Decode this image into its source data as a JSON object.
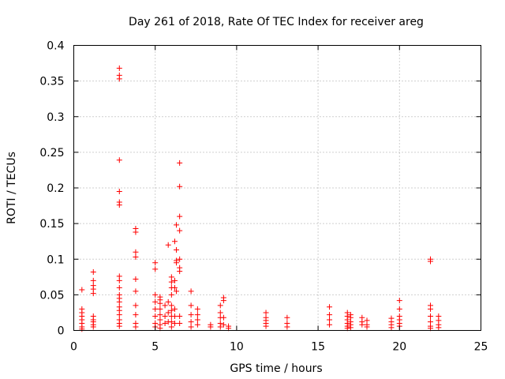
{
  "chart_data": {
    "type": "scatter",
    "title": "Day 261 of 2018, Rate Of TEC Index for receiver areg",
    "xlabel": "GPS time / hours",
    "ylabel": "ROTI / TECUs",
    "xlim": [
      0,
      25
    ],
    "ylim": [
      0,
      0.4
    ],
    "xticks": [
      0,
      5,
      10,
      15,
      20,
      25
    ],
    "xtick_labels": [
      "0",
      "5",
      "10",
      "15",
      "20",
      "25"
    ],
    "yticks": [
      0,
      0.05,
      0.1,
      0.15,
      0.2,
      0.25,
      0.3,
      0.35,
      0.4
    ],
    "ytick_labels": [
      "0",
      "0.05",
      "0.1",
      "0.15",
      "0.2",
      "0.25",
      "0.3",
      "0.35",
      "0.4"
    ],
    "grid": true,
    "marker": "+",
    "color": "#ff0000",
    "series": [
      {
        "name": "ROTI",
        "points": [
          [
            0.5,
            0.057
          ],
          [
            0.5,
            0.03
          ],
          [
            0.5,
            0.025
          ],
          [
            0.5,
            0.02
          ],
          [
            0.5,
            0.015
          ],
          [
            0.5,
            0.01
          ],
          [
            0.5,
            0.005
          ],
          [
            0.5,
            0.002
          ],
          [
            1.2,
            0.082
          ],
          [
            1.2,
            0.07
          ],
          [
            1.2,
            0.063
          ],
          [
            1.2,
            0.058
          ],
          [
            1.2,
            0.052
          ],
          [
            1.2,
            0.02
          ],
          [
            1.2,
            0.015
          ],
          [
            1.2,
            0.012
          ],
          [
            1.2,
            0.008
          ],
          [
            1.2,
            0.005
          ],
          [
            2.8,
            0.368
          ],
          [
            2.8,
            0.358
          ],
          [
            2.8,
            0.353
          ],
          [
            2.8,
            0.239
          ],
          [
            2.8,
            0.195
          ],
          [
            2.8,
            0.18
          ],
          [
            2.8,
            0.176
          ],
          [
            2.8,
            0.076
          ],
          [
            2.8,
            0.07
          ],
          [
            2.8,
            0.06
          ],
          [
            2.8,
            0.05
          ],
          [
            2.8,
            0.045
          ],
          [
            2.8,
            0.04
          ],
          [
            2.8,
            0.033
          ],
          [
            2.8,
            0.028
          ],
          [
            2.8,
            0.022
          ],
          [
            2.8,
            0.015
          ],
          [
            2.8,
            0.01
          ],
          [
            2.8,
            0.006
          ],
          [
            3.8,
            0.143
          ],
          [
            3.8,
            0.138
          ],
          [
            3.8,
            0.11
          ],
          [
            3.8,
            0.103
          ],
          [
            3.8,
            0.072
          ],
          [
            3.8,
            0.055
          ],
          [
            3.8,
            0.035
          ],
          [
            3.8,
            0.022
          ],
          [
            3.8,
            0.01
          ],
          [
            3.8,
            0.005
          ],
          [
            5.0,
            0.095
          ],
          [
            5.0,
            0.086
          ],
          [
            5.0,
            0.05
          ],
          [
            5.0,
            0.04
          ],
          [
            5.0,
            0.03
          ],
          [
            5.0,
            0.02
          ],
          [
            5.0,
            0.01
          ],
          [
            5.0,
            0.005
          ],
          [
            5.3,
            0.047
          ],
          [
            5.3,
            0.043
          ],
          [
            5.3,
            0.038
          ],
          [
            5.3,
            0.03
          ],
          [
            5.3,
            0.022
          ],
          [
            5.3,
            0.015
          ],
          [
            5.3,
            0.008
          ],
          [
            5.3,
            0.003
          ],
          [
            5.6,
            0.035
          ],
          [
            5.6,
            0.02
          ],
          [
            5.6,
            0.01
          ],
          [
            5.8,
            0.12
          ],
          [
            5.8,
            0.04
          ],
          [
            5.8,
            0.025
          ],
          [
            5.8,
            0.012
          ],
          [
            6.0,
            0.075
          ],
          [
            6.0,
            0.068
          ],
          [
            6.0,
            0.06
          ],
          [
            6.0,
            0.05
          ],
          [
            6.0,
            0.035
          ],
          [
            6.0,
            0.028
          ],
          [
            6.0,
            0.02
          ],
          [
            6.0,
            0.012
          ],
          [
            6.0,
            0.005
          ],
          [
            6.2,
            0.125
          ],
          [
            6.2,
            0.07
          ],
          [
            6.2,
            0.06
          ],
          [
            6.2,
            0.03
          ],
          [
            6.2,
            0.02
          ],
          [
            6.2,
            0.01
          ],
          [
            6.3,
            0.148
          ],
          [
            6.3,
            0.113
          ],
          [
            6.3,
            0.098
          ],
          [
            6.3,
            0.095
          ],
          [
            6.3,
            0.055
          ],
          [
            6.5,
            0.235
          ],
          [
            6.5,
            0.202
          ],
          [
            6.5,
            0.16
          ],
          [
            6.5,
            0.14
          ],
          [
            6.5,
            0.1
          ],
          [
            6.5,
            0.088
          ],
          [
            6.5,
            0.083
          ],
          [
            6.5,
            0.02
          ],
          [
            6.5,
            0.01
          ],
          [
            7.2,
            0.055
          ],
          [
            7.2,
            0.035
          ],
          [
            7.2,
            0.022
          ],
          [
            7.2,
            0.012
          ],
          [
            7.2,
            0.005
          ],
          [
            7.6,
            0.03
          ],
          [
            7.6,
            0.022
          ],
          [
            7.6,
            0.015
          ],
          [
            7.6,
            0.008
          ],
          [
            8.4,
            0.008
          ],
          [
            8.4,
            0.005
          ],
          [
            9.0,
            0.035
          ],
          [
            9.0,
            0.025
          ],
          [
            9.0,
            0.018
          ],
          [
            9.0,
            0.01
          ],
          [
            9.0,
            0.005
          ],
          [
            9.2,
            0.046
          ],
          [
            9.2,
            0.042
          ],
          [
            9.2,
            0.018
          ],
          [
            9.2,
            0.008
          ],
          [
            9.5,
            0.006
          ],
          [
            9.5,
            0.003
          ],
          [
            11.8,
            0.025
          ],
          [
            11.8,
            0.018
          ],
          [
            11.8,
            0.014
          ],
          [
            11.8,
            0.01
          ],
          [
            11.8,
            0.006
          ],
          [
            13.1,
            0.018
          ],
          [
            13.1,
            0.01
          ],
          [
            13.1,
            0.005
          ],
          [
            15.7,
            0.033
          ],
          [
            15.7,
            0.022
          ],
          [
            15.7,
            0.015
          ],
          [
            15.7,
            0.008
          ],
          [
            16.8,
            0.025
          ],
          [
            16.8,
            0.02
          ],
          [
            16.8,
            0.015
          ],
          [
            16.8,
            0.01
          ],
          [
            16.8,
            0.006
          ],
          [
            16.8,
            0.003
          ],
          [
            17.0,
            0.022
          ],
          [
            17.0,
            0.018
          ],
          [
            17.0,
            0.012
          ],
          [
            17.0,
            0.008
          ],
          [
            17.0,
            0.004
          ],
          [
            17.7,
            0.018
          ],
          [
            17.7,
            0.012
          ],
          [
            17.7,
            0.008
          ],
          [
            18.0,
            0.014
          ],
          [
            18.0,
            0.008
          ],
          [
            18.0,
            0.005
          ],
          [
            19.5,
            0.017
          ],
          [
            19.5,
            0.012
          ],
          [
            19.5,
            0.008
          ],
          [
            19.5,
            0.004
          ],
          [
            20.0,
            0.042
          ],
          [
            20.0,
            0.03
          ],
          [
            20.0,
            0.02
          ],
          [
            20.0,
            0.015
          ],
          [
            20.0,
            0.01
          ],
          [
            20.0,
            0.006
          ],
          [
            21.9,
            0.1
          ],
          [
            21.9,
            0.097
          ],
          [
            21.9,
            0.035
          ],
          [
            21.9,
            0.03
          ],
          [
            21.9,
            0.02
          ],
          [
            21.9,
            0.012
          ],
          [
            21.9,
            0.006
          ],
          [
            21.9,
            0.003
          ],
          [
            22.4,
            0.02
          ],
          [
            22.4,
            0.014
          ],
          [
            22.4,
            0.008
          ],
          [
            22.4,
            0.004
          ]
        ]
      }
    ]
  }
}
